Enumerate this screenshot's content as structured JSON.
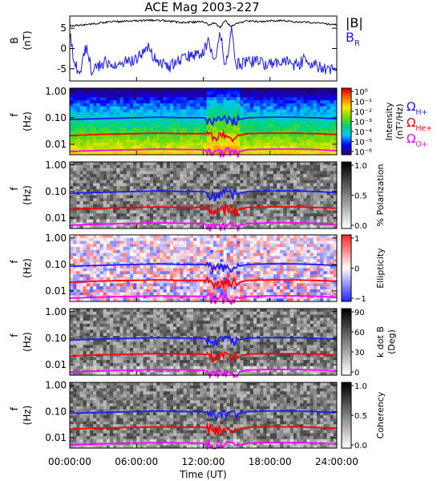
{
  "title": "ACE Mag 2003-227",
  "chart_data": {
    "type": "heatmap",
    "title": "ACE Mag 2003-227",
    "xlabel": "Time (UT)",
    "x_ticks": [
      "00:00:00",
      "06:00:00",
      "12:00:00",
      "18:00:00",
      "24:00:00"
    ],
    "x_tick_hours": [
      0,
      6,
      12,
      18,
      24
    ],
    "xlim_hours": [
      0,
      24
    ],
    "panels": [
      {
        "name": "field-panel",
        "type": "line",
        "ylabel": "B",
        "yunit": "(nT)",
        "yticks": [
          "5",
          "0",
          "-5"
        ],
        "ytick_values": [
          5,
          0,
          -5
        ],
        "ylim": [
          -8,
          8
        ],
        "legend": [
          {
            "label": "|B|",
            "color": "#000000"
          },
          {
            "label": "B",
            "sub": "R",
            "color": "#1a1aff"
          }
        ],
        "series": [
          {
            "name": "|B|",
            "color": "#000000",
            "hours": [
              0,
              1,
              2,
              3,
              4,
              5,
              6,
              7,
              8,
              9,
              10,
              11,
              12,
              12.5,
              13,
              13.5,
              14,
              14.5,
              15,
              16,
              17,
              18,
              19,
              20,
              21,
              22,
              23,
              24
            ],
            "values": [
              5.6,
              5.7,
              6.1,
              6.4,
              6.6,
              6.7,
              6.8,
              6.9,
              7.0,
              6.7,
              6.4,
              6.5,
              6.6,
              5.9,
              6.3,
              5.2,
              6.8,
              5.4,
              6.2,
              6.8,
              6.6,
              6.8,
              6.9,
              6.6,
              6.5,
              6.4,
              6.1,
              5.8
            ]
          },
          {
            "name": "B_R",
            "color": "#1a1aff",
            "hours": [
              0,
              0.5,
              1,
              1.5,
              2,
              3,
              4,
              5,
              6,
              7,
              8,
              9,
              10,
              11,
              12,
              12.5,
              13,
              13.5,
              14,
              14.5,
              15,
              16,
              17,
              18,
              19,
              20,
              21,
              22,
              23,
              24
            ],
            "values": [
              3.5,
              -4.5,
              -5.0,
              0.5,
              -5.5,
              -3.5,
              -4.0,
              -3.0,
              -2.5,
              0.5,
              -3.5,
              -4.5,
              -2.5,
              -2.0,
              -1.0,
              2.5,
              -4.5,
              4.5,
              -5.5,
              5.0,
              -4.0,
              -3.0,
              -3.5,
              -4.0,
              -2.5,
              -4.5,
              -3.0,
              -4.0,
              -5.0,
              -5.5
            ]
          }
        ]
      },
      {
        "name": "intensity-panel",
        "type": "heatmap",
        "ylabel": "f",
        "yunit": "(Hz)",
        "yticks": [
          "1.00",
          "0.10",
          "0.01"
        ],
        "ytick_values": [
          1.0,
          0.1,
          0.01
        ],
        "ylim": [
          0.004,
          1.3
        ],
        "yscale": "log",
        "colormap": "rainbow",
        "colorbar_label": "Intensity",
        "colorbar_unit": "(nT²/Hz)",
        "colorbar_ticks": [
          "10⁰",
          "10⁻¹",
          "10⁻²",
          "10⁻³",
          "10⁻⁴",
          "10⁻⁵",
          "10⁻⁶"
        ],
        "colorbar_range": [
          1e-06,
          1.0
        ],
        "legend": [
          {
            "label": "Ω",
            "sub": "H+",
            "color": "#1a1aff"
          },
          {
            "label": "Ω",
            "sub": "He+",
            "color": "#ff0000"
          },
          {
            "label": "Ω",
            "sub": "O+",
            "color": "#ff00ff"
          }
        ]
      },
      {
        "name": "polarization-panel",
        "type": "heatmap",
        "ylabel": "f",
        "yunit": "(Hz)",
        "yticks": [
          "1.00",
          "0.10",
          "0.01"
        ],
        "ytick_values": [
          1.0,
          0.1,
          0.01
        ],
        "yscale": "log",
        "colormap": "gray",
        "colorbar_label": "% Polarization",
        "colorbar_unit": "",
        "colorbar_ticks": [
          "1.0",
          "0.5",
          "0.0"
        ],
        "colorbar_range": [
          0,
          1
        ]
      },
      {
        "name": "ellipticity-panel",
        "type": "heatmap",
        "ylabel": "f",
        "yunit": "(Hz)",
        "yticks": [
          "1.00",
          "0.10",
          "0.01"
        ],
        "ytick_values": [
          1.0,
          0.1,
          0.01
        ],
        "yscale": "log",
        "colormap": "blue-white-red",
        "colorbar_label": "Ellipticity",
        "colorbar_unit": "",
        "colorbar_ticks": [
          "1",
          "0",
          "−1"
        ],
        "colorbar_range": [
          -1,
          1
        ]
      },
      {
        "name": "kdotb-panel",
        "type": "heatmap",
        "ylabel": "f",
        "yunit": "(Hz)",
        "yticks": [
          "1.00",
          "0.10",
          "0.01"
        ],
        "ytick_values": [
          1.0,
          0.1,
          0.01
        ],
        "yscale": "log",
        "colormap": "gray",
        "colorbar_label": "k dot B",
        "colorbar_unit": "(Deg)",
        "colorbar_ticks": [
          "90",
          "60",
          "30",
          "0"
        ],
        "colorbar_range": [
          0,
          90
        ]
      },
      {
        "name": "coherency-panel",
        "type": "heatmap",
        "ylabel": "f",
        "yunit": "(Hz)",
        "yticks": [
          "1.00",
          "0.10",
          "0.01"
        ],
        "ytick_values": [
          1.0,
          0.1,
          0.01
        ],
        "yscale": "log",
        "colormap": "gray",
        "colorbar_label": "Coherency",
        "colorbar_unit": "",
        "colorbar_ticks": [
          "1.0",
          "0.5",
          "0.0"
        ],
        "colorbar_range": [
          0,
          1
        ]
      }
    ],
    "gyrofrequency_lines": [
      {
        "name": "H+",
        "color": "#1a1aff",
        "hours": [
          0,
          2,
          4,
          6,
          8,
          10,
          12,
          13,
          14,
          15,
          16,
          18,
          20,
          22,
          24
        ],
        "freq_hz": [
          0.085,
          0.09,
          0.095,
          0.1,
          0.105,
          0.1,
          0.1,
          0.07,
          0.09,
          0.08,
          0.1,
          0.105,
          0.105,
          0.1,
          0.09
        ]
      },
      {
        "name": "He+",
        "color": "#ff0000",
        "hours": [
          0,
          2,
          4,
          6,
          8,
          10,
          12,
          13,
          14,
          15,
          16,
          18,
          20,
          22,
          24
        ],
        "freq_hz": [
          0.021,
          0.023,
          0.024,
          0.025,
          0.026,
          0.025,
          0.025,
          0.018,
          0.022,
          0.02,
          0.025,
          0.026,
          0.026,
          0.025,
          0.023
        ]
      },
      {
        "name": "O+",
        "color": "#ff00ff",
        "hours": [
          0,
          2,
          4,
          6,
          8,
          10,
          12,
          13,
          14,
          15,
          16,
          18,
          20,
          22,
          24
        ],
        "freq_hz": [
          0.0053,
          0.0057,
          0.006,
          0.0062,
          0.0065,
          0.0063,
          0.0062,
          0.0045,
          0.0055,
          0.005,
          0.0062,
          0.0065,
          0.0065,
          0.0063,
          0.0057
        ]
      }
    ]
  }
}
